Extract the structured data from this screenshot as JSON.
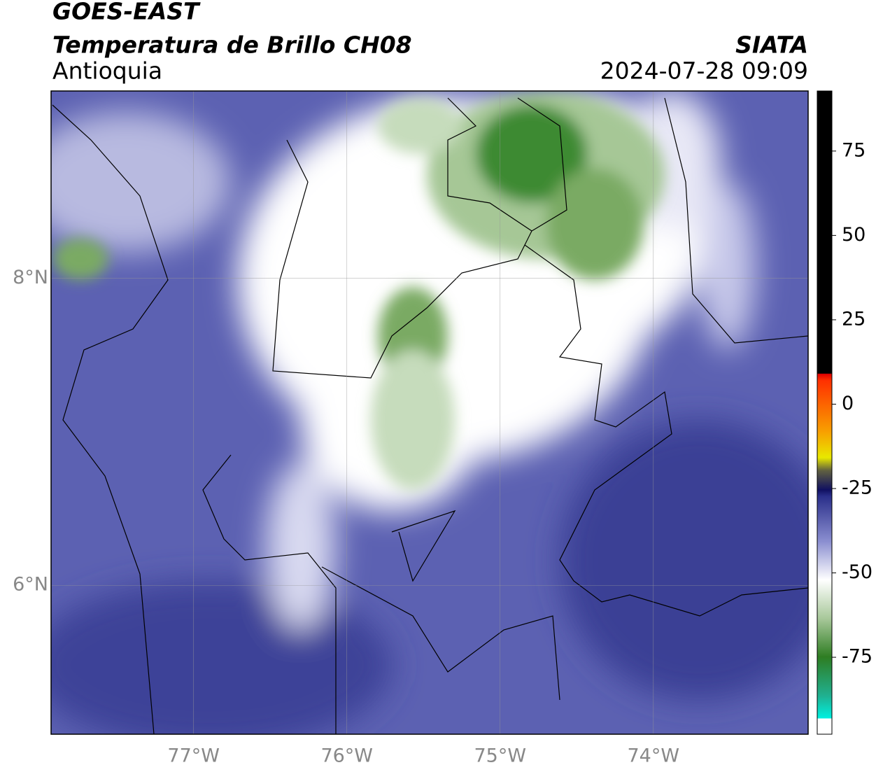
{
  "header": {
    "satellite": "GOES-EAST",
    "product": "Temperatura de Brillo CH08",
    "region": "Antioquia",
    "agency": "SIATA",
    "datetime": "2024-07-28 09:09"
  },
  "map": {
    "xlim": [
      -77.93,
      -72.99
    ],
    "ylim": [
      5.03,
      9.22
    ],
    "xticks": [
      {
        "value": -77,
        "label": "77°W"
      },
      {
        "value": -76,
        "label": "76°W"
      },
      {
        "value": -75,
        "label": "75°W"
      },
      {
        "value": -74,
        "label": "74°W"
      }
    ],
    "yticks": [
      {
        "value": 8,
        "label": "8°N"
      },
      {
        "value": 6,
        "label": "6°N"
      }
    ],
    "grid": true
  },
  "colorbar": {
    "lim": [
      -97.8,
      92.8
    ],
    "ticks": [
      75,
      50,
      25,
      0,
      -25,
      -50,
      -75
    ]
  }
}
